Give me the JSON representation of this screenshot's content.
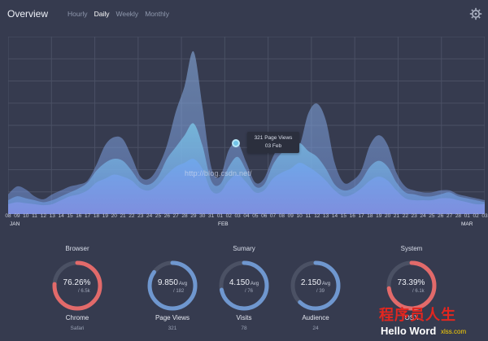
{
  "header": {
    "title": "Overview",
    "tabs": [
      {
        "label": "Hourly",
        "active": false
      },
      {
        "label": "Daily",
        "active": true
      },
      {
        "label": "Weekly",
        "active": false
      },
      {
        "label": "Monthly",
        "active": false
      }
    ]
  },
  "chart": {
    "dates": [
      "08",
      "09",
      "10",
      "11",
      "12",
      "13",
      "14",
      "15",
      "16",
      "17",
      "18",
      "19",
      "20",
      "21",
      "22",
      "23",
      "24",
      "25",
      "26",
      "27",
      "28",
      "29",
      "30",
      "31",
      "01",
      "02",
      "03",
      "04",
      "05",
      "06",
      "07",
      "08",
      "09",
      "10",
      "11",
      "12",
      "13",
      "14",
      "15",
      "16",
      "17",
      "18",
      "19",
      "20",
      "21",
      "22",
      "23",
      "24",
      "25",
      "26",
      "27",
      "28",
      "01",
      "02",
      "03"
    ],
    "months": [
      "JAN",
      "FEB",
      "MAR"
    ],
    "tooltip": {
      "line1": "321 Page Views",
      "line2": "03 Feb"
    }
  },
  "chart_data": {
    "type": "area",
    "x": [
      "08",
      "09",
      "10",
      "11",
      "12",
      "13",
      "14",
      "15",
      "16",
      "17",
      "18",
      "19",
      "20",
      "21",
      "22",
      "23",
      "24",
      "25",
      "26",
      "27",
      "28",
      "29",
      "30",
      "31",
      "01",
      "02",
      "03",
      "04",
      "05",
      "06",
      "07",
      "08",
      "09",
      "10",
      "11",
      "12",
      "13",
      "14",
      "15",
      "16",
      "17",
      "18",
      "19",
      "20",
      "21",
      "22",
      "23",
      "24",
      "25",
      "26",
      "27",
      "28",
      "01",
      "02",
      "03"
    ],
    "series": [
      {
        "name": "",
        "values": [
          20,
          28,
          25,
          18,
          15,
          20,
          24,
          28,
          30,
          34,
          50,
          70,
          78,
          76,
          58,
          38,
          36,
          48,
          70,
          104,
          130,
          165,
          110,
          48,
          38,
          65,
          72,
          52,
          32,
          36,
          58,
          72,
          75,
          70,
          102,
          112,
          95,
          52,
          32,
          34,
          44,
          70,
          80,
          70,
          42,
          28,
          24,
          22,
          22,
          24,
          24,
          20,
          18,
          16,
          14
        ]
      },
      {
        "name": "",
        "values": [
          14,
          18,
          16,
          14,
          12,
          14,
          18,
          22,
          26,
          32,
          44,
          52,
          56,
          54,
          44,
          32,
          30,
          38,
          56,
          68,
          80,
          92,
          70,
          34,
          30,
          48,
          58,
          44,
          28,
          30,
          50,
          62,
          66,
          72,
          64,
          58,
          46,
          30,
          24,
          26,
          34,
          48,
          54,
          48,
          32,
          22,
          20,
          18,
          18,
          20,
          22,
          18,
          16,
          14,
          12
        ]
      },
      {
        "name": "",
        "values": [
          10,
          12,
          11,
          10,
          9,
          10,
          14,
          18,
          20,
          24,
          32,
          36,
          40,
          38,
          34,
          26,
          24,
          30,
          40,
          48,
          52,
          56,
          46,
          24,
          22,
          34,
          40,
          32,
          22,
          24,
          36,
          42,
          46,
          52,
          48,
          42,
          34,
          24,
          18,
          20,
          26,
          34,
          38,
          34,
          24,
          16,
          14,
          14,
          14,
          16,
          16,
          14,
          12,
          10,
          10
        ]
      }
    ],
    "ylim": [
      0,
      180
    ],
    "grid": true
  },
  "stats": [
    {
      "group": "Browser",
      "value": "76.26%",
      "unit": "",
      "sub": "/ 6.5k",
      "label": "Chrome",
      "foot": "Safari",
      "progress": 0.76,
      "color": "#e26a6a"
    },
    {
      "group": "",
      "value": "9.850",
      "unit": "Avg",
      "sub": "/ 182",
      "label": "Page Views",
      "foot": "321",
      "progress": 0.85,
      "color": "#6f97cf"
    },
    {
      "group": "Sumary",
      "value": "4.150",
      "unit": "Avg",
      "sub": "/ 76",
      "label": "Visits",
      "foot": "78",
      "progress": 0.72,
      "color": "#6f97cf"
    },
    {
      "group": "",
      "value": "2.150",
      "unit": "Avg",
      "sub": "/ 39",
      "label": "Audience",
      "foot": "24",
      "progress": 0.62,
      "color": "#6f97cf"
    },
    {
      "group": "System",
      "value": "73.39%",
      "unit": "",
      "sub": "/ 6.1k",
      "label": "OSX",
      "foot": "",
      "progress": 0.73,
      "color": "#e26a6a"
    }
  ],
  "watermark": "http://blog.csdn.net/",
  "brand": {
    "cn": "程序员人生",
    "en": "Hello Word",
    "small": "xlss.com"
  },
  "colors": {
    "background": "#363b4f",
    "area": "#7aa5e8",
    "red": "#e26a6a",
    "blue": "#6f97cf"
  }
}
